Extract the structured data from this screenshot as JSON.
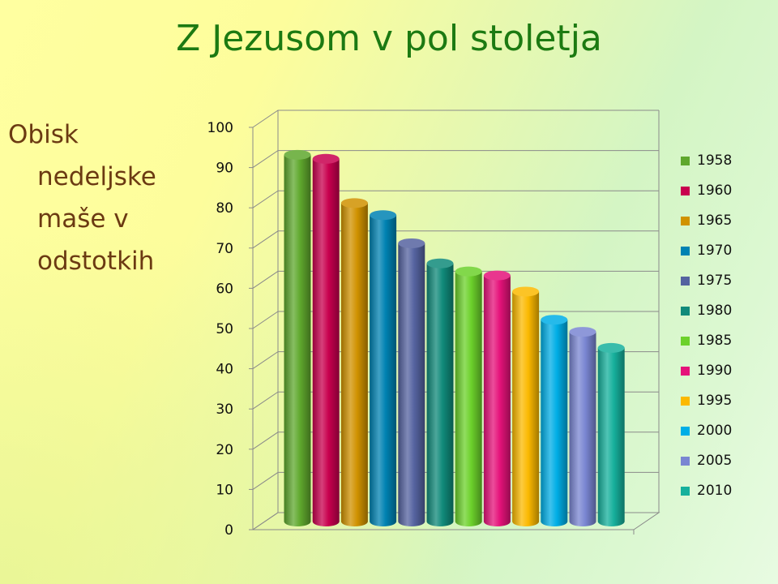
{
  "slide": {
    "title": "Z Jezusom v pol stoletja",
    "side_text": [
      "Obisk",
      "nedeljske",
      "maše v",
      "odstotkih"
    ]
  },
  "chart_data": {
    "type": "bar",
    "categories": [
      "1958",
      "1960",
      "1965",
      "1970",
      "1975",
      "1980",
      "1985",
      "1990",
      "1995",
      "2000",
      "2005",
      "2010"
    ],
    "values": [
      96,
      95,
      84,
      81,
      74,
      69,
      67,
      66,
      62,
      55,
      52,
      48
    ],
    "colors": [
      "#5fa82d",
      "#c8004e",
      "#d09200",
      "#0082b2",
      "#5563a0",
      "#108a7a",
      "#6cd12b",
      "#e5127a",
      "#fbb900",
      "#00aee6",
      "#7a86d2",
      "#16b09c"
    ],
    "ylim": [
      0,
      100
    ],
    "yticks": [
      0,
      10,
      20,
      30,
      40,
      50,
      60,
      70,
      80,
      90,
      100
    ],
    "grid": true,
    "legend_position": "right",
    "style": "3d-cylinder"
  }
}
